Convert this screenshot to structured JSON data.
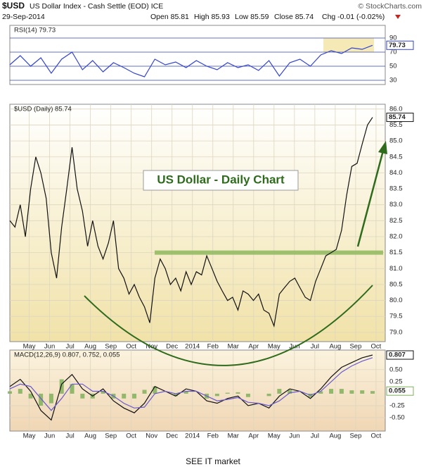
{
  "header": {
    "symbol": "$USD",
    "name": "US Dollar Index - Cash Settle (EOD) ICE",
    "source": "© StockCharts.com",
    "date": "29-Sep-2014",
    "quote": [
      "Open 85.81",
      "High 85.93",
      "Low 85.59",
      "Close 85.74",
      "Chg -0.01 (-0.02%)"
    ]
  },
  "chart_data": [
    {
      "type": "line",
      "label": "RSI(14) 79.73",
      "xlim": [
        0.05,
        18.45
      ],
      "ylim": [
        24,
        108
      ],
      "yticks": [
        30,
        50,
        70,
        90
      ],
      "grid": true,
      "grid_color": "#3344aa",
      "x": [
        0.05,
        0.56,
        1.07,
        1.57,
        2.08,
        2.59,
        3.1,
        3.61,
        4.11,
        4.62,
        5.13,
        5.64,
        6.15,
        6.65,
        7.16,
        7.67,
        8.18,
        8.69,
        9.19,
        9.7,
        10.21,
        10.72,
        11.23,
        11.73,
        12.24,
        12.75,
        13.26,
        13.77,
        14.27,
        14.78,
        15.29,
        15.8,
        16.31,
        16.81,
        17.32,
        17.83
      ],
      "series": [
        {
          "color": "#3344cc",
          "box": true,
          "values": [
            52,
            65,
            50,
            62,
            40,
            60,
            70,
            45,
            58,
            42,
            55,
            48,
            40,
            35,
            60,
            52,
            56,
            48,
            58,
            50,
            45,
            55,
            48,
            52,
            44,
            58,
            36,
            55,
            60,
            50,
            66,
            72,
            68,
            76,
            74,
            79.73
          ]
        }
      ]
    },
    {
      "type": "line",
      "label": "$USD (Daily) 85.74",
      "annotation": "US Dollar - Daily Chart",
      "hline": 81.5,
      "xlim": [
        0.05,
        18.45
      ],
      "ylim": [
        78.71,
        86.15
      ],
      "grid": true,
      "grid_color": "#ddd6bf",
      "xticks": [
        {
          "value": 1,
          "label": "May"
        },
        {
          "value": 2,
          "label": "Jun"
        },
        {
          "value": 3,
          "label": "Jul"
        },
        {
          "value": 4,
          "label": "Aug"
        },
        {
          "value": 5,
          "label": "Sep"
        },
        {
          "value": 6,
          "label": "Oct"
        },
        {
          "value": 7,
          "label": "Nov"
        },
        {
          "value": 8,
          "label": "Dec"
        },
        {
          "value": 9,
          "label": "2014"
        },
        {
          "value": 10,
          "label": "Feb"
        },
        {
          "value": 11,
          "label": "Mar"
        },
        {
          "value": 12,
          "label": "Apr"
        },
        {
          "value": 13,
          "label": "May"
        },
        {
          "value": 14,
          "label": "Jun"
        },
        {
          "value": 15,
          "label": "Jul"
        },
        {
          "value": 16,
          "label": "Aug"
        },
        {
          "value": 17,
          "label": "Sep"
        },
        {
          "value": 18,
          "label": "Oct"
        }
      ],
      "yticks": [
        {
          "value": 79,
          "label": "79.0"
        },
        {
          "value": 79.5,
          "label": "79.5"
        },
        {
          "value": 80,
          "label": "80.0"
        },
        {
          "value": 80.5,
          "label": "80.5"
        },
        {
          "value": 81,
          "label": "81.0"
        },
        {
          "value": 81.5,
          "label": "81.5"
        },
        {
          "value": 82,
          "label": "82.0"
        },
        {
          "value": 82.5,
          "label": "82.5"
        },
        {
          "value": 83,
          "label": "83.0"
        },
        {
          "value": 83.5,
          "label": "83.5"
        },
        {
          "value": 84,
          "label": "84.0"
        },
        {
          "value": 84.5,
          "label": "84.5"
        },
        {
          "value": 85,
          "label": "85.0"
        },
        {
          "value": 85.5,
          "label": "85.5"
        },
        {
          "value": 86,
          "label": "86.0"
        }
      ],
      "x": [
        0.05,
        0.3,
        0.56,
        0.81,
        1.07,
        1.32,
        1.57,
        1.83,
        2.08,
        2.34,
        2.59,
        2.84,
        3.1,
        3.35,
        3.61,
        3.86,
        4.11,
        4.37,
        4.62,
        4.88,
        5.13,
        5.38,
        5.64,
        5.89,
        6.15,
        6.4,
        6.65,
        6.91,
        7.16,
        7.42,
        7.67,
        7.92,
        8.18,
        8.43,
        8.69,
        8.94,
        9.19,
        9.45,
        9.7,
        9.96,
        10.21,
        10.46,
        10.72,
        10.97,
        11.23,
        11.48,
        11.73,
        11.99,
        12.24,
        12.5,
        12.75,
        13.0,
        13.26,
        13.51,
        13.77,
        14.02,
        14.27,
        14.53,
        14.78,
        15.04,
        15.29,
        15.54,
        15.8,
        16.05,
        16.31,
        16.56,
        16.81,
        17.07,
        17.32,
        17.58,
        17.83
      ],
      "series": [
        {
          "color": "#111111",
          "box": true,
          "values": [
            82.5,
            82.3,
            83.0,
            82.0,
            83.5,
            84.5,
            84.0,
            83.2,
            81.5,
            80.7,
            82.3,
            83.5,
            84.8,
            83.5,
            82.8,
            81.7,
            82.5,
            81.7,
            81.3,
            81.8,
            82.5,
            81.0,
            80.7,
            80.2,
            80.5,
            80.1,
            79.8,
            79.3,
            80.7,
            81.3,
            81.0,
            80.5,
            80.7,
            80.3,
            80.9,
            80.5,
            80.9,
            80.8,
            81.4,
            81.0,
            80.6,
            80.3,
            80.0,
            80.1,
            79.7,
            80.3,
            80.2,
            80.0,
            80.2,
            79.7,
            79.6,
            79.2,
            80.2,
            80.4,
            80.6,
            80.7,
            80.4,
            80.1,
            80.0,
            80.6,
            81.0,
            81.4,
            81.5,
            81.6,
            82.2,
            83.3,
            84.2,
            84.3,
            84.9,
            85.5,
            85.74
          ]
        }
      ]
    },
    {
      "type": "line",
      "label": "MACD(12,26,9) 0.807, 0.752, 0.055",
      "xlim": [
        0.05,
        18.45
      ],
      "ylim": [
        -0.78,
        0.91
      ],
      "grid": true,
      "grid_color": "#ddd6bf",
      "xticks": [
        {
          "value": 1,
          "label": "May"
        },
        {
          "value": 2,
          "label": "Jun"
        },
        {
          "value": 3,
          "label": "Jul"
        },
        {
          "value": 4,
          "label": "Aug"
        },
        {
          "value": 5,
          "label": "Sep"
        },
        {
          "value": 6,
          "label": "Oct"
        },
        {
          "value": 7,
          "label": "Nov"
        },
        {
          "value": 8,
          "label": "Dec"
        },
        {
          "value": 9,
          "label": "2014"
        },
        {
          "value": 10,
          "label": "Feb"
        },
        {
          "value": 11,
          "label": "Mar"
        },
        {
          "value": 12,
          "label": "Apr"
        },
        {
          "value": 13,
          "label": "May"
        },
        {
          "value": 14,
          "label": "Jun"
        },
        {
          "value": 15,
          "label": "Jul"
        },
        {
          "value": 16,
          "label": "Aug"
        },
        {
          "value": 17,
          "label": "Sep"
        },
        {
          "value": 18,
          "label": "Oct"
        }
      ],
      "yticks": [
        {
          "value": -0.5,
          "label": "-0.50"
        },
        {
          "value": -0.25,
          "label": "-0.25"
        },
        {
          "value": 0.25,
          "label": "0.25"
        },
        {
          "value": 0.5,
          "label": "0.50"
        }
      ],
      "x": [
        0.05,
        0.56,
        1.07,
        1.57,
        2.08,
        2.59,
        3.1,
        3.61,
        4.11,
        4.62,
        5.13,
        5.64,
        6.15,
        6.65,
        7.16,
        7.67,
        8.18,
        8.69,
        9.19,
        9.7,
        10.21,
        10.72,
        11.23,
        11.73,
        12.24,
        12.75,
        13.26,
        13.77,
        14.27,
        14.78,
        15.29,
        15.8,
        16.31,
        16.81,
        17.32,
        17.83
      ],
      "series": [
        {
          "type": "bar",
          "color": "#7fb05a",
          "box": true,
          "values": [
            0.05,
            0.1,
            -0.1,
            -0.25,
            -0.2,
            0.3,
            0.2,
            -0.1,
            -0.1,
            0.05,
            -0.1,
            -0.1,
            -0.1,
            0.08,
            0.15,
            0,
            -0.05,
            0.05,
            0,
            -0.1,
            -0.05,
            0.02,
            0.03,
            -0.07,
            0,
            -0.05,
            0.1,
            0.08,
            0,
            -0.07,
            0.05,
            0.1,
            0.1,
            0.07,
            0.07,
            0.055
          ]
        },
        {
          "color": "#111111",
          "box": true,
          "values": [
            0.15,
            0.3,
            0.05,
            -0.35,
            -0.55,
            0.2,
            0.4,
            0.1,
            -0.05,
            0.1,
            -0.15,
            -0.3,
            -0.4,
            -0.2,
            0.15,
            0.05,
            -0.05,
            0.1,
            0.05,
            -0.15,
            -0.2,
            -0.1,
            -0.05,
            -0.25,
            -0.2,
            -0.3,
            -0.05,
            0.1,
            0.05,
            -0.1,
            0.1,
            0.35,
            0.55,
            0.65,
            0.75,
            0.807
          ]
        },
        {
          "color": "#6a5acd",
          "values": [
            0.1,
            0.2,
            0.15,
            -0.1,
            -0.35,
            -0.1,
            0.2,
            0.2,
            0.05,
            0.05,
            -0.05,
            -0.2,
            -0.3,
            -0.28,
            0.0,
            0.05,
            0.0,
            0.05,
            0.05,
            -0.05,
            -0.15,
            -0.12,
            -0.08,
            -0.18,
            -0.2,
            -0.25,
            -0.15,
            0.02,
            0.05,
            -0.03,
            0.05,
            0.25,
            0.45,
            0.58,
            0.68,
            0.752
          ]
        }
      ]
    }
  ],
  "footer": "SEE IT market"
}
